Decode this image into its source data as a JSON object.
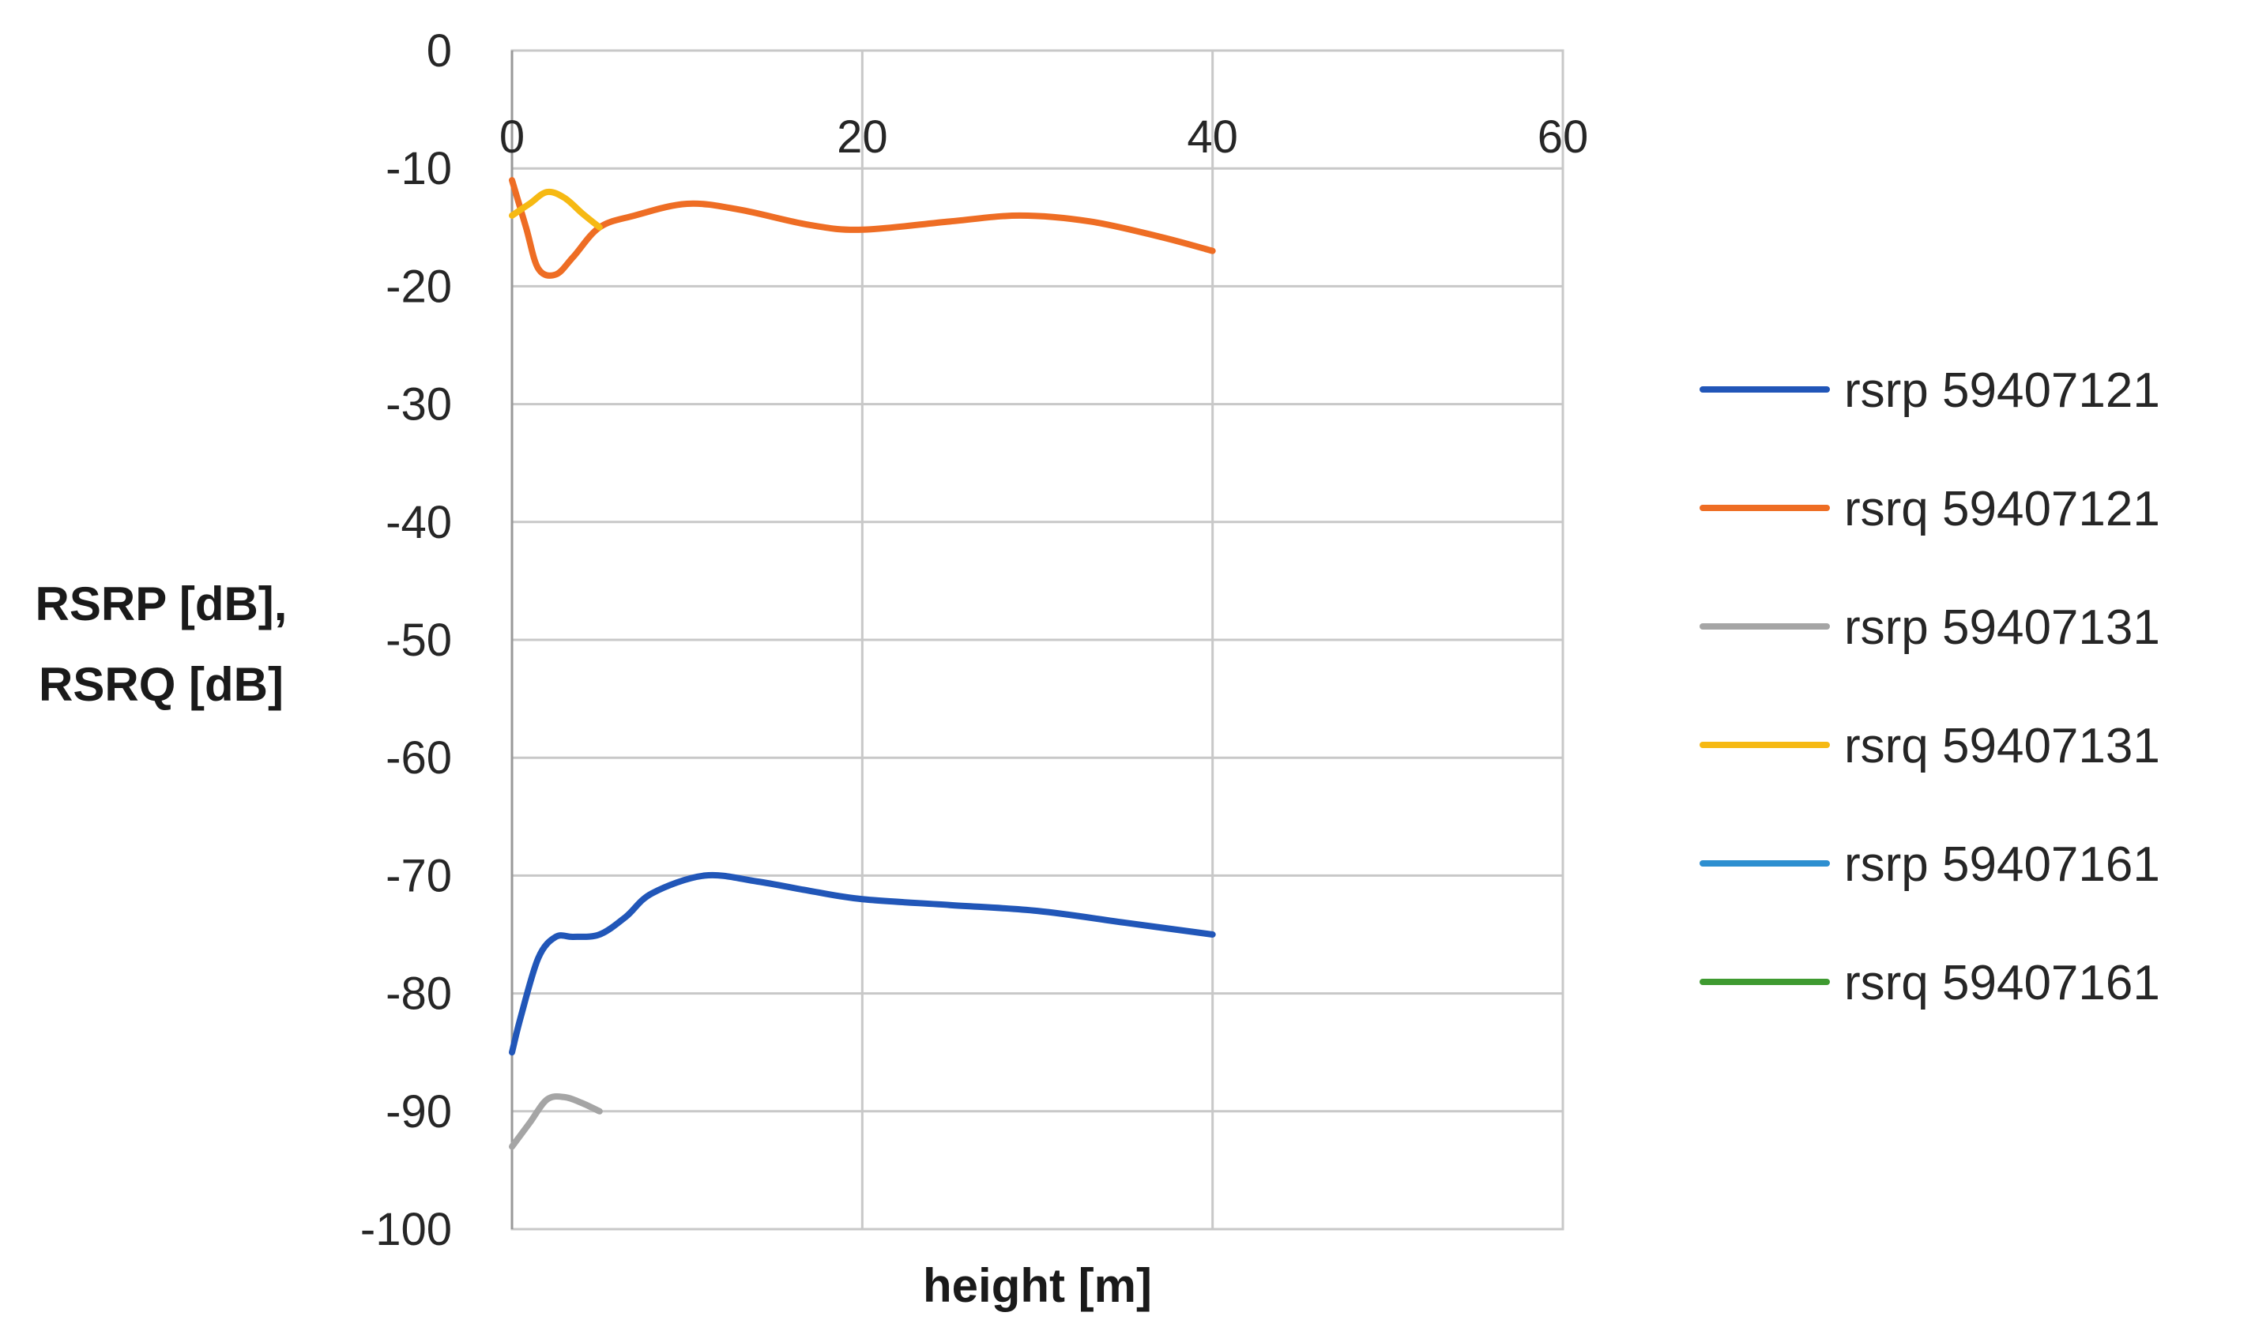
{
  "chart_data": {
    "type": "line",
    "xlabel": "height [m]",
    "ylabel_lines": [
      "RSRP [dB],",
      "RSRQ [dB]"
    ],
    "xlim": [
      0,
      60
    ],
    "ylim": [
      -100,
      0
    ],
    "x_ticks": [
      "0",
      "20",
      "40",
      "60"
    ],
    "x_tick_values": [
      0,
      20,
      40,
      60
    ],
    "y_ticks": [
      "0",
      "-10",
      "-20",
      "-30",
      "-40",
      "-50",
      "-60",
      "-70",
      "-80",
      "-90",
      "-100"
    ],
    "y_tick_values": [
      0,
      -10,
      -20,
      -30,
      -40,
      -50,
      -60,
      -70,
      -80,
      -90,
      -100
    ],
    "x_axis_position": "top",
    "grid": true,
    "legend_position": "right",
    "series": [
      {
        "name": "rsrp 59407121",
        "color": "#2156b8",
        "points": [
          [
            0,
            -85
          ],
          [
            0.5,
            -82
          ],
          [
            1.5,
            -77
          ],
          [
            2.5,
            -75.2
          ],
          [
            3.5,
            -75.2
          ],
          [
            5,
            -75
          ],
          [
            6.5,
            -73.5
          ],
          [
            8,
            -71.5
          ],
          [
            11,
            -70
          ],
          [
            14,
            -70.5
          ],
          [
            17,
            -71.3
          ],
          [
            20,
            -72
          ],
          [
            25,
            -72.5
          ],
          [
            30,
            -73
          ],
          [
            35,
            -74
          ],
          [
            40,
            -75
          ]
        ]
      },
      {
        "name": "rsrq 59407121",
        "color": "#ee6d24",
        "points": [
          [
            0,
            -11
          ],
          [
            0.8,
            -15
          ],
          [
            1.5,
            -18.5
          ],
          [
            2.5,
            -19
          ],
          [
            3.5,
            -17.5
          ],
          [
            5,
            -15
          ],
          [
            7,
            -14
          ],
          [
            10,
            -13
          ],
          [
            13,
            -13.5
          ],
          [
            17,
            -14.8
          ],
          [
            20,
            -15.2
          ],
          [
            25,
            -14.5
          ],
          [
            29,
            -14
          ],
          [
            33,
            -14.5
          ],
          [
            37,
            -15.8
          ],
          [
            40,
            -17
          ]
        ]
      },
      {
        "name": "rsrp 59407131",
        "color": "#a5a5a5",
        "points": [
          [
            0,
            -93
          ],
          [
            1,
            -91
          ],
          [
            2,
            -89
          ],
          [
            3,
            -88.8
          ],
          [
            4,
            -89.3
          ],
          [
            5,
            -90
          ]
        ]
      },
      {
        "name": "rsrq 59407131",
        "color": "#f6b913",
        "points": [
          [
            0,
            -14
          ],
          [
            1,
            -13
          ],
          [
            2,
            -12
          ],
          [
            3,
            -12.5
          ],
          [
            4,
            -13.8
          ],
          [
            5,
            -15
          ]
        ]
      },
      {
        "name": "rsrp 59407161",
        "color": "#2e8fd0",
        "points": []
      },
      {
        "name": "rsrq 59407161",
        "color": "#3e9a30",
        "points": []
      }
    ]
  }
}
